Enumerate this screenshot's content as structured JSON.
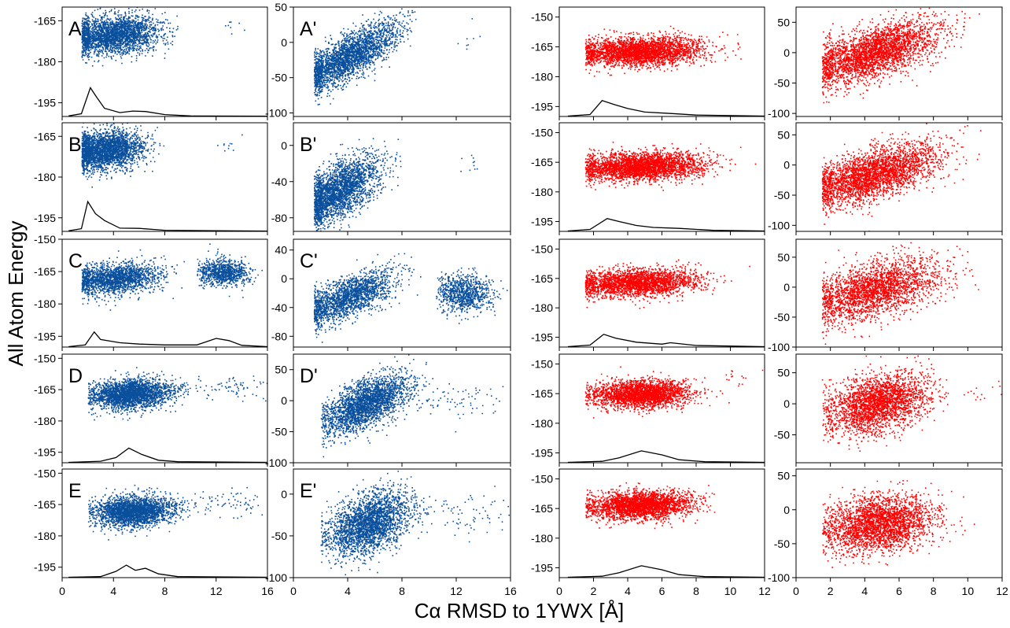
{
  "figure": {
    "ylabel": "All Atom Energy",
    "xlabel": "Cα RMSD to 1YWX [Å]",
    "colors": {
      "blue": "#0a4f9c",
      "red": "#ff0000",
      "curve": "#000000"
    }
  },
  "chart_data": [
    {
      "type": "scatter",
      "panel": "A",
      "label": "A",
      "color": "blue",
      "xlim": [
        0,
        16
      ],
      "ylim": [
        -200,
        -160
      ],
      "yticks": [
        -165,
        -180,
        -195
      ],
      "xticks": [
        0,
        4,
        8,
        12,
        16
      ],
      "clusters": [
        {
          "cx": 4.0,
          "sx": 1.9,
          "cy": -170,
          "sy": 3.5,
          "n": 2600,
          "slope": 0.4,
          "minx": 1.5,
          "maxx": 9.0
        },
        {
          "cx": 13.0,
          "sx": 0.7,
          "cy": -167,
          "sy": 2.0,
          "n": 8,
          "slope": 0,
          "minx": 12,
          "maxx": 15
        }
      ],
      "curve": [
        [
          0.5,
          -199.8
        ],
        [
          1.5,
          -199
        ],
        [
          2.2,
          -189.5
        ],
        [
          2.7,
          -193
        ],
        [
          3.3,
          -197
        ],
        [
          4.5,
          -198.6
        ],
        [
          5.5,
          -198
        ],
        [
          6.5,
          -198.2
        ],
        [
          8,
          -199.3
        ],
        [
          10,
          -199.8
        ],
        [
          16,
          -199.9
        ]
      ]
    },
    {
      "type": "scatter",
      "panel": "A'",
      "label": "A'",
      "color": "blue",
      "xlim": [
        0,
        16
      ],
      "ylim": [
        -105,
        50
      ],
      "yticks": [
        50,
        0,
        -50,
        -100
      ],
      "xticks": [
        0,
        4,
        8,
        12,
        16
      ],
      "clusters": [
        {
          "cx": 4.0,
          "sx": 1.9,
          "cy": -20,
          "sy": 15,
          "n": 2600,
          "slope": 10,
          "minx": 1.5,
          "maxx": 9.0
        },
        {
          "cx": 13.0,
          "sx": 0.7,
          "cy": 5,
          "sy": 10,
          "n": 8,
          "slope": 0,
          "minx": 12,
          "maxx": 15
        }
      ],
      "curve": null
    },
    {
      "type": "scatter",
      "panel": "A-red",
      "label": "",
      "color": "red",
      "xlim": [
        0,
        12
      ],
      "ylim": [
        -200,
        -145
      ],
      "yticks": [
        -150,
        -165,
        -180,
        -195
      ],
      "xticks": [
        0,
        2,
        4,
        6,
        8,
        10,
        12
      ],
      "clusters": [
        {
          "cx": 4.7,
          "sx": 1.8,
          "cy": -167,
          "sy": 3.5,
          "n": 3000,
          "slope": 0.3,
          "minx": 1.5,
          "maxx": 11.5
        }
      ],
      "curve": [
        [
          0.5,
          -199.8
        ],
        [
          1.8,
          -199
        ],
        [
          2.5,
          -192
        ],
        [
          3.2,
          -194
        ],
        [
          4,
          -196
        ],
        [
          5,
          -197.8
        ],
        [
          6.5,
          -198.5
        ],
        [
          8,
          -199.3
        ],
        [
          12,
          -199.8
        ]
      ]
    },
    {
      "type": "scatter",
      "panel": "A-red-2",
      "label": "",
      "color": "red",
      "xlim": [
        0,
        12
      ],
      "ylim": [
        -105,
        75
      ],
      "yticks": [
        50,
        0,
        -50,
        -100
      ],
      "xticks": [
        0,
        2,
        4,
        6,
        8,
        10,
        12
      ],
      "clusters": [
        {
          "cx": 4.5,
          "sx": 1.9,
          "cy": 0,
          "sy": 20,
          "n": 3000,
          "slope": 8,
          "minx": 1.5,
          "maxx": 12
        }
      ],
      "curve": null
    },
    {
      "type": "scatter",
      "panel": "B",
      "label": "B",
      "color": "blue",
      "xlim": [
        0,
        16
      ],
      "ylim": [
        -200,
        -160
      ],
      "yticks": [
        -165,
        -180,
        -195
      ],
      "xticks": [
        0,
        4,
        8,
        12,
        16
      ],
      "clusters": [
        {
          "cx": 3.3,
          "sx": 1.5,
          "cy": -170,
          "sy": 3.5,
          "n": 2600,
          "slope": 0.5,
          "minx": 1.5,
          "maxx": 8.5
        },
        {
          "cx": 12.8,
          "sx": 0.6,
          "cy": -169,
          "sy": 3,
          "n": 10,
          "slope": 0,
          "minx": 12,
          "maxx": 15
        }
      ],
      "curve": [
        [
          0.5,
          -199.8
        ],
        [
          1.5,
          -199
        ],
        [
          2.0,
          -189
        ],
        [
          2.6,
          -193.5
        ],
        [
          3.3,
          -196
        ],
        [
          4.5,
          -198.8
        ],
        [
          6,
          -198.9
        ],
        [
          8,
          -199.6
        ],
        [
          16,
          -199.9
        ]
      ]
    },
    {
      "type": "scatter",
      "panel": "B'",
      "label": "B'",
      "color": "blue",
      "xlim": [
        0,
        16
      ],
      "ylim": [
        -95,
        25
      ],
      "yticks": [
        0,
        -40,
        -80
      ],
      "xticks": [
        0,
        4,
        8,
        12,
        16
      ],
      "clusters": [
        {
          "cx": 3.3,
          "sx": 1.5,
          "cy": -50,
          "sy": 15,
          "n": 2600,
          "slope": 8,
          "minx": 1.5,
          "maxx": 8.5
        },
        {
          "cx": 12.8,
          "sx": 0.6,
          "cy": -15,
          "sy": 10,
          "n": 10,
          "slope": 0,
          "minx": 12,
          "maxx": 15
        }
      ],
      "curve": null
    },
    {
      "type": "scatter",
      "panel": "B-red",
      "label": "",
      "color": "red",
      "xlim": [
        0,
        12
      ],
      "ylim": [
        -200,
        -145
      ],
      "yticks": [
        -150,
        -165,
        -180,
        -195
      ],
      "xticks": [
        0,
        2,
        4,
        6,
        8,
        10,
        12
      ],
      "clusters": [
        {
          "cx": 4.7,
          "sx": 1.8,
          "cy": -167,
          "sy": 3.5,
          "n": 3000,
          "slope": 0.3,
          "minx": 1.5,
          "maxx": 11.5
        }
      ],
      "curve": [
        [
          0.5,
          -199.8
        ],
        [
          1.8,
          -199
        ],
        [
          2.8,
          -193.5
        ],
        [
          3.5,
          -195
        ],
        [
          4.5,
          -197
        ],
        [
          5.5,
          -198
        ],
        [
          7,
          -198.5
        ],
        [
          9,
          -199.5
        ],
        [
          12,
          -199.8
        ]
      ]
    },
    {
      "type": "scatter",
      "panel": "B-red-2",
      "label": "",
      "color": "red",
      "xlim": [
        0,
        12
      ],
      "ylim": [
        -110,
        70
      ],
      "yticks": [
        50,
        0,
        -50,
        -100
      ],
      "xticks": [
        0,
        2,
        4,
        6,
        8,
        10,
        12
      ],
      "clusters": [
        {
          "cx": 4.5,
          "sx": 1.9,
          "cy": -15,
          "sy": 20,
          "n": 3000,
          "slope": 8,
          "minx": 1.5,
          "maxx": 11
        }
      ],
      "curve": null
    },
    {
      "type": "scatter",
      "panel": "C",
      "label": "C",
      "color": "blue",
      "xlim": [
        0,
        16
      ],
      "ylim": [
        -200,
        -150
      ],
      "yticks": [
        -150,
        -165,
        -180,
        -195
      ],
      "xticks": [
        0,
        4,
        8,
        12,
        16
      ],
      "clusters": [
        {
          "cx": 4.0,
          "sx": 1.8,
          "cy": -168,
          "sy": 3.5,
          "n": 1900,
          "slope": 0.5,
          "minx": 1.5,
          "maxx": 9.5
        },
        {
          "cx": 12.5,
          "sx": 1.0,
          "cy": -165,
          "sy": 3,
          "n": 900,
          "slope": 0,
          "minx": 10.5,
          "maxx": 16
        }
      ],
      "curve": [
        [
          0.5,
          -199.8
        ],
        [
          1.8,
          -199
        ],
        [
          2.5,
          -193
        ],
        [
          3.0,
          -196.5
        ],
        [
          4.5,
          -198
        ],
        [
          6,
          -198.6
        ],
        [
          8,
          -199
        ],
        [
          10.5,
          -199
        ],
        [
          12,
          -196
        ],
        [
          13,
          -197
        ],
        [
          14,
          -199.2
        ],
        [
          16,
          -199.8
        ]
      ]
    },
    {
      "type": "scatter",
      "panel": "C'",
      "label": "C'",
      "color": "blue",
      "xlim": [
        0,
        16
      ],
      "ylim": [
        -95,
        55
      ],
      "yticks": [
        40,
        0,
        -40,
        -80
      ],
      "xticks": [
        0,
        4,
        8,
        12,
        16
      ],
      "clusters": [
        {
          "cx": 4.0,
          "sx": 1.8,
          "cy": -25,
          "sy": 14,
          "n": 1900,
          "slope": 7,
          "minx": 1.5,
          "maxx": 9.5
        },
        {
          "cx": 12.5,
          "sx": 1.0,
          "cy": -20,
          "sy": 13,
          "n": 900,
          "slope": 0,
          "minx": 10.5,
          "maxx": 16
        }
      ],
      "curve": null
    },
    {
      "type": "scatter",
      "panel": "C-red",
      "label": "",
      "color": "red",
      "xlim": [
        0,
        12
      ],
      "ylim": [
        -200,
        -145
      ],
      "yticks": [
        -150,
        -165,
        -180,
        -195
      ],
      "xticks": [
        0,
        2,
        4,
        6,
        8,
        10,
        12
      ],
      "clusters": [
        {
          "cx": 4.5,
          "sx": 1.8,
          "cy": -167,
          "sy": 3.5,
          "n": 2500,
          "slope": 0.3,
          "minx": 1.5,
          "maxx": 11.5
        }
      ],
      "curve": [
        [
          0.5,
          -199.8
        ],
        [
          1.8,
          -199
        ],
        [
          2.6,
          -193.5
        ],
        [
          3.3,
          -195.5
        ],
        [
          4.5,
          -197.5
        ],
        [
          6,
          -198.5
        ],
        [
          6.5,
          -197.8
        ],
        [
          8,
          -199.2
        ],
        [
          12,
          -199.8
        ]
      ]
    },
    {
      "type": "scatter",
      "panel": "C-red-2",
      "label": "",
      "color": "red",
      "xlim": [
        0,
        12
      ],
      "ylim": [
        -100,
        80
      ],
      "yticks": [
        50,
        0,
        -50,
        -100
      ],
      "xticks": [
        0,
        2,
        4,
        6,
        8,
        10,
        12
      ],
      "clusters": [
        {
          "cx": 4.5,
          "sx": 1.9,
          "cy": -5,
          "sy": 22,
          "n": 2500,
          "slope": 7,
          "minx": 1.5,
          "maxx": 11.5
        }
      ],
      "curve": null
    },
    {
      "type": "scatter",
      "panel": "D",
      "label": "D",
      "color": "blue",
      "xlim": [
        0,
        16
      ],
      "ylim": [
        -200,
        -148
      ],
      "yticks": [
        -150,
        -165,
        -180,
        -195
      ],
      "xticks": [
        0,
        4,
        8,
        12,
        16
      ],
      "clusters": [
        {
          "cx": 5.3,
          "sx": 1.6,
          "cy": -167,
          "sy": 3.5,
          "n": 2600,
          "slope": 0.3,
          "minx": 2,
          "maxx": 10
        },
        {
          "cx": 12.5,
          "sx": 2.0,
          "cy": -164,
          "sy": 3,
          "n": 80,
          "slope": 0,
          "minx": 9,
          "maxx": 16
        }
      ],
      "curve": [
        [
          0.5,
          -199.8
        ],
        [
          3,
          -199.3
        ],
        [
          4.2,
          -197.5
        ],
        [
          5.2,
          -193
        ],
        [
          6.2,
          -196
        ],
        [
          7.5,
          -198.8
        ],
        [
          9,
          -199.5
        ],
        [
          16,
          -199.8
        ]
      ]
    },
    {
      "type": "scatter",
      "panel": "D'",
      "label": "D'",
      "color": "blue",
      "xlim": [
        0,
        16
      ],
      "ylim": [
        -100,
        75
      ],
      "yticks": [
        50,
        0,
        -50,
        -100
      ],
      "xticks": [
        0,
        4,
        8,
        12,
        16
      ],
      "clusters": [
        {
          "cx": 5.3,
          "sx": 1.6,
          "cy": -5,
          "sy": 18,
          "n": 2600,
          "slope": 9,
          "minx": 2,
          "maxx": 10
        },
        {
          "cx": 12.5,
          "sx": 2.0,
          "cy": 5,
          "sy": 15,
          "n": 80,
          "slope": 0,
          "minx": 9,
          "maxx": 16
        }
      ],
      "curve": null
    },
    {
      "type": "scatter",
      "panel": "D-red",
      "label": "",
      "color": "red",
      "xlim": [
        0,
        12
      ],
      "ylim": [
        -200,
        -145
      ],
      "yticks": [
        -150,
        -165,
        -180,
        -195
      ],
      "xticks": [
        0,
        2,
        4,
        6,
        8,
        10,
        12
      ],
      "clusters": [
        {
          "cx": 4.7,
          "sx": 1.4,
          "cy": -165,
          "sy": 3.5,
          "n": 2600,
          "slope": 0.3,
          "minx": 1.5,
          "maxx": 10
        },
        {
          "cx": 10.5,
          "sx": 1.0,
          "cy": -157,
          "sy": 3,
          "n": 15,
          "slope": 0,
          "minx": 9.5,
          "maxx": 12
        }
      ],
      "curve": [
        [
          0.5,
          -199.8
        ],
        [
          2.5,
          -199.3
        ],
        [
          3.5,
          -197.5
        ],
        [
          4.8,
          -194
        ],
        [
          6,
          -196
        ],
        [
          7,
          -198.5
        ],
        [
          8.5,
          -199.5
        ],
        [
          12,
          -199.8
        ]
      ]
    },
    {
      "type": "scatter",
      "panel": "D-red-2",
      "label": "",
      "color": "red",
      "xlim": [
        0,
        12
      ],
      "ylim": [
        -95,
        80
      ],
      "yticks": [
        50,
        0,
        -50
      ],
      "xticks": [
        0,
        2,
        4,
        6,
        8,
        10,
        12
      ],
      "clusters": [
        {
          "cx": 4.7,
          "sx": 1.5,
          "cy": 0,
          "sy": 22,
          "n": 2600,
          "slope": 5,
          "minx": 1.5,
          "maxx": 10
        },
        {
          "cx": 11,
          "sx": 0.8,
          "cy": 20,
          "sy": 10,
          "n": 15,
          "slope": 0,
          "minx": 10,
          "maxx": 12
        }
      ],
      "curve": null
    },
    {
      "type": "scatter",
      "panel": "E",
      "label": "E",
      "color": "blue",
      "xlim": [
        0,
        16
      ],
      "ylim": [
        -200,
        -148
      ],
      "yticks": [
        -150,
        -165,
        -180,
        -195
      ],
      "xticks": [
        0,
        4,
        8,
        12,
        16
      ],
      "clusters": [
        {
          "cx": 5.5,
          "sx": 1.5,
          "cy": -168,
          "sy": 3.5,
          "n": 2600,
          "slope": 0.3,
          "minx": 2,
          "maxx": 10
        },
        {
          "cx": 12.5,
          "sx": 2.0,
          "cy": -164,
          "sy": 3,
          "n": 80,
          "slope": 0,
          "minx": 9,
          "maxx": 16
        }
      ],
      "curve": [
        [
          0.5,
          -199.8
        ],
        [
          3,
          -199.5
        ],
        [
          4.2,
          -197
        ],
        [
          5,
          -194
        ],
        [
          5.7,
          -196.5
        ],
        [
          6.5,
          -195.5
        ],
        [
          7.5,
          -198.2
        ],
        [
          9,
          -199.5
        ],
        [
          16,
          -199.8
        ]
      ]
    },
    {
      "type": "scatter",
      "panel": "E'",
      "label": "E'",
      "color": "blue",
      "xlim": [
        0,
        16
      ],
      "ylim": [
        -100,
        30
      ],
      "yticks": [
        0,
        -50,
        -100
      ],
      "xticks": [
        0,
        4,
        8,
        12,
        16
      ],
      "clusters": [
        {
          "cx": 5.5,
          "sx": 1.5,
          "cy": -35,
          "sy": 17,
          "n": 2600,
          "slope": 5,
          "minx": 2,
          "maxx": 10
        },
        {
          "cx": 12.5,
          "sx": 2.0,
          "cy": -25,
          "sy": 13,
          "n": 80,
          "slope": 0,
          "minx": 9,
          "maxx": 16
        }
      ],
      "curve": null
    },
    {
      "type": "scatter",
      "panel": "E-red",
      "label": "",
      "color": "red",
      "xlim": [
        0,
        12
      ],
      "ylim": [
        -200,
        -145
      ],
      "yticks": [
        -150,
        -165,
        -180,
        -195
      ],
      "xticks": [
        0,
        2,
        4,
        6,
        8,
        10,
        12
      ],
      "clusters": [
        {
          "cx": 4.7,
          "sx": 1.5,
          "cy": -163,
          "sy": 3.5,
          "n": 2800,
          "slope": 0.3,
          "minx": 1.5,
          "maxx": 12
        }
      ],
      "curve": [
        [
          0.5,
          -199.8
        ],
        [
          2.5,
          -199.3
        ],
        [
          3.5,
          -197.5
        ],
        [
          4.8,
          -194
        ],
        [
          6,
          -196
        ],
        [
          7,
          -198.5
        ],
        [
          8.5,
          -199.5
        ],
        [
          12,
          -199.8
        ]
      ]
    },
    {
      "type": "scatter",
      "panel": "E-red-2",
      "label": "",
      "color": "red",
      "xlim": [
        0,
        12
      ],
      "ylim": [
        -100,
        60
      ],
      "yticks": [
        50,
        0,
        -50,
        -100
      ],
      "xticks": [
        0,
        2,
        4,
        6,
        8,
        10,
        12
      ],
      "clusters": [
        {
          "cx": 4.8,
          "sx": 1.6,
          "cy": -20,
          "sy": 20,
          "n": 2800,
          "slope": 3,
          "minx": 1.5,
          "maxx": 12
        }
      ],
      "curve": null
    }
  ]
}
